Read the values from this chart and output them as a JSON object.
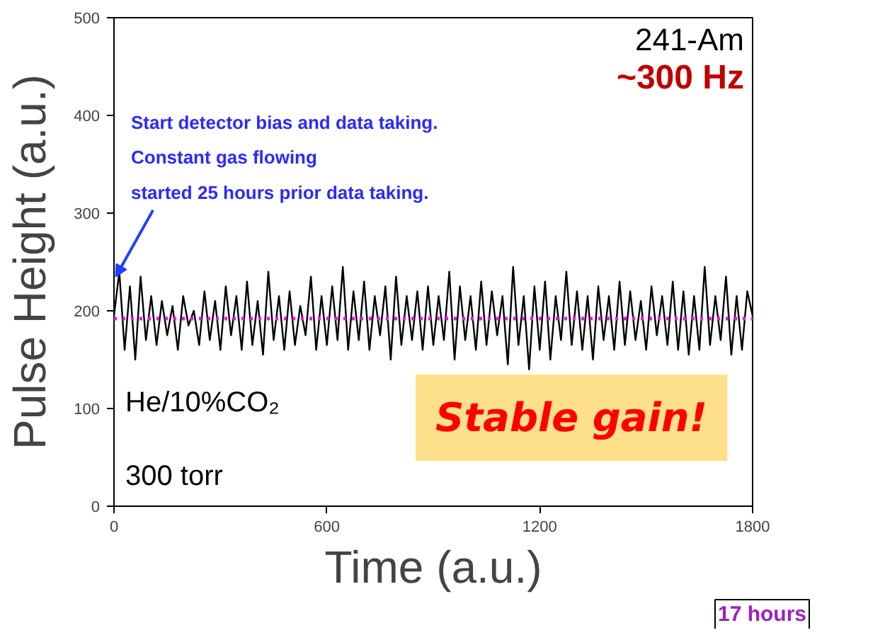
{
  "chart_data": {
    "type": "line",
    "xlabel": "Time (a.u.)",
    "ylabel": "Pulse Height (a.u.)",
    "x": [
      0,
      15,
      30,
      45,
      60,
      75,
      90,
      105,
      120,
      135,
      150,
      165,
      180,
      195,
      210,
      225,
      240,
      255,
      270,
      285,
      300,
      315,
      330,
      345,
      360,
      375,
      390,
      405,
      420,
      435,
      450,
      465,
      480,
      495,
      510,
      525,
      540,
      555,
      570,
      585,
      600,
      615,
      630,
      645,
      660,
      675,
      690,
      705,
      720,
      735,
      750,
      765,
      780,
      795,
      810,
      825,
      840,
      855,
      870,
      885,
      900,
      915,
      930,
      945,
      960,
      975,
      990,
      1005,
      1020,
      1035,
      1050,
      1065,
      1080,
      1095,
      1110,
      1125,
      1140,
      1155,
      1170,
      1185,
      1200,
      1215,
      1230,
      1245,
      1260,
      1275,
      1290,
      1305,
      1320,
      1335,
      1350,
      1365,
      1380,
      1395,
      1410,
      1425,
      1440,
      1455,
      1470,
      1485,
      1500,
      1515,
      1530,
      1545,
      1560,
      1575,
      1590,
      1605,
      1620,
      1635,
      1650,
      1665,
      1680,
      1695,
      1710,
      1725,
      1740,
      1755,
      1770,
      1785,
      1800
    ],
    "series": [
      {
        "color": "#000000",
        "values": [
          195,
          240,
          160,
          225,
          150,
          235,
          170,
          215,
          165,
          210,
          175,
          205,
          160,
          215,
          185,
          200,
          165,
          220,
          170,
          210,
          160,
          225,
          175,
          215,
          160,
          230,
          165,
          210,
          155,
          240,
          170,
          215,
          160,
          220,
          165,
          205,
          175,
          235,
          160,
          215,
          165,
          225,
          170,
          245,
          160,
          220,
          170,
          230,
          160,
          215,
          175,
          225,
          150,
          235,
          165,
          215,
          170,
          220,
          160,
          225,
          165,
          215,
          170,
          240,
          150,
          225,
          170,
          215,
          160,
          230,
          165,
          220,
          175,
          215,
          145,
          245,
          165,
          215,
          140,
          225,
          160,
          230,
          150,
          215,
          170,
          240,
          165,
          220,
          160,
          215,
          150,
          225,
          170,
          215,
          160,
          230,
          165,
          220,
          170,
          210,
          160,
          225,
          175,
          215,
          165,
          230,
          160,
          220,
          155,
          215,
          160,
          245,
          165,
          215,
          170,
          235,
          155,
          215,
          160,
          220,
          195
        ]
      }
    ],
    "ref_lines": [
      {
        "axis": "y",
        "value": 192,
        "color": "#ff00ff",
        "line_style": "dotted"
      }
    ],
    "xlim": [
      0,
      1800
    ],
    "xticks": [
      0,
      600,
      1200,
      1800
    ],
    "ylim": [
      0,
      500
    ],
    "yticks": [
      0,
      100,
      200,
      300,
      400,
      500
    ],
    "grid": false,
    "annotations": [
      {
        "text": "Start detector bias and data taking.\nConstant gas flowing\nstarted 25 hours prior data taking.",
        "x": 0,
        "y": 235
      },
      "241-Am",
      "~300 Hz",
      "He/10%CO₂",
      "300 torr",
      "Stable gain!",
      "17 hours"
    ]
  }
}
